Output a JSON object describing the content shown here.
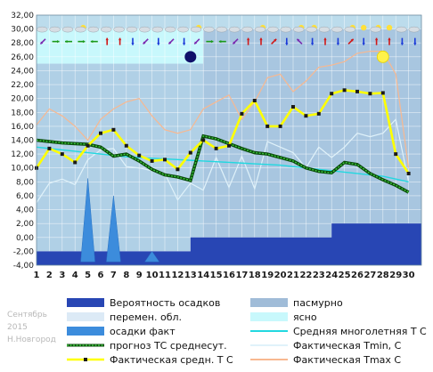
{
  "chart_data": {
    "type": "line",
    "title": "",
    "xlabel": "",
    "ylabel": "",
    "ylim": [
      -4,
      32
    ],
    "yticks": [
      "32,00",
      "30,00",
      "28,00",
      "26,00",
      "24,00",
      "22,00",
      "20,00",
      "18,00",
      "16,00",
      "14,00",
      "12,00",
      "10,00",
      "8,00",
      "6,00",
      "4,00",
      "2,00",
      "0,00",
      "-2,00",
      "-4,00"
    ],
    "x": [
      1,
      2,
      3,
      4,
      5,
      6,
      7,
      8,
      9,
      10,
      11,
      12,
      13,
      14,
      15,
      16,
      17,
      18,
      19,
      20,
      21,
      22,
      23,
      24,
      25,
      26,
      27,
      28,
      29,
      30
    ],
    "grid": true,
    "legend_placement": "bottom",
    "watermark": [
      "Сентябрь",
      "2015",
      "Н.Новгород"
    ],
    "colors": {
      "plot_bg": "#bcdcec",
      "precip_prob": "#2846b4",
      "overcast": "#a0bcd8",
      "variable": "#dceaf6",
      "precip_fact": "#3c8cdc",
      "clear": "#c8f8fc",
      "forecast": "#0a7a0a",
      "climate": "#22d8e0",
      "tmin": "#e0f2fa",
      "tmean": "#ffff00",
      "tmax": "#f8b890"
    },
    "band_top": {
      "clear_cols_1_13": 30,
      "variable_cols_1_13": 25,
      "overcast_cols_14_29": 30
    },
    "series": [
      {
        "name": "Фактическая Tmax, C",
        "key": "tmax",
        "values": [
          16.2,
          18.5,
          17.5,
          16.0,
          14.0,
          17.0,
          18.5,
          19.5,
          20.0,
          17.5,
          15.5,
          15.0,
          15.5,
          18.5,
          19.5,
          20.5,
          17.0,
          19.5,
          23.0,
          23.5,
          21.0,
          22.5,
          24.5,
          24.8,
          25.3,
          26.5,
          26.8,
          26.8,
          23.5,
          10.0
        ]
      },
      {
        "name": "Фактическая Tmin, C",
        "key": "tmin",
        "values": [
          5.0,
          7.8,
          8.4,
          7.6,
          11.2,
          12.6,
          12.8,
          10.2,
          10.0,
          9.6,
          9.2,
          5.4,
          7.8,
          6.8,
          11.5,
          7.2,
          11.7,
          7.0,
          13.8,
          13.0,
          12.2,
          10.0,
          13.0,
          11.5,
          13.0,
          15.0,
          14.5,
          15.0,
          17.0,
          8.0
        ]
      },
      {
        "name": "Средняя многолетняя T С",
        "key": "climate",
        "values": [
          13.0,
          12.8,
          12.6,
          12.4,
          12.2,
          12.0,
          11.8,
          11.6,
          11.5,
          11.4,
          11.3,
          11.2,
          11.1,
          11.0,
          10.9,
          10.8,
          10.7,
          10.6,
          10.5,
          10.4,
          10.2,
          10.0,
          9.8,
          9.6,
          9.4,
          9.2,
          9.0,
          8.8,
          8.4,
          8.0
        ]
      },
      {
        "name": "прогноз ТС среднесут.",
        "key": "forecast",
        "values": [
          14.0,
          13.8,
          13.6,
          13.5,
          13.4,
          13.0,
          11.7,
          12.0,
          11.0,
          9.8,
          9.0,
          8.7,
          8.2,
          14.6,
          14.2,
          13.5,
          12.8,
          12.2,
          12.0,
          11.5,
          11.0,
          10.0,
          9.5,
          9.3,
          10.8,
          10.5,
          9.2,
          8.3,
          7.5,
          6.5
        ]
      },
      {
        "name": "Фактическая средн. Т С",
        "key": "tmean",
        "values": [
          10.0,
          12.8,
          12.0,
          10.8,
          13.2,
          15.0,
          15.5,
          13.2,
          11.8,
          11.0,
          11.2,
          9.8,
          12.2,
          14.0,
          12.8,
          13.2,
          17.8,
          19.7,
          16.0,
          16.0,
          18.8,
          17.5,
          17.8,
          20.7,
          21.2,
          21.0,
          20.7,
          20.8,
          12.0,
          9.2
        ]
      }
    ],
    "precip_prob": [
      -2,
      -2,
      -2,
      -2,
      -2,
      -2,
      -2,
      -2,
      -2,
      -2,
      -2,
      -2,
      0,
      0,
      0,
      0,
      0,
      0,
      0,
      0,
      0,
      0,
      0,
      2,
      2,
      2,
      2,
      2,
      2,
      2,
      2
    ],
    "precip_fact_peaks": [
      {
        "day": 5,
        "value": 8.5
      },
      {
        "day": 7,
        "value": 6.0
      },
      {
        "day": 10,
        "value": -2.0
      }
    ],
    "moon_markers": [
      {
        "day": 13,
        "value": 26.0
      }
    ],
    "sun_markers": [
      {
        "day": 28,
        "value": 26.0
      }
    ],
    "weather_icons": [
      "cloud",
      "cloud",
      "cloud",
      "sun-cloud",
      "cloud",
      "cloud",
      "cloud",
      "cloud",
      "cloud",
      "cloud",
      "cloud",
      "cloud",
      "sun-cloud",
      "cloud",
      "cloud",
      "cloud",
      "cloud",
      "sun-cloud",
      "cloud",
      "cloud",
      "sun-cloud",
      "sun-cloud",
      "cloud",
      "cloud",
      "sun-cloud",
      "sun",
      "sun-cloud",
      "sun",
      "cloud",
      "cloud"
    ],
    "wind_icons": [
      "sw",
      "e",
      "w",
      "e",
      "w",
      "n",
      "n",
      "s",
      "sw",
      "s",
      "sw",
      "s",
      "sw",
      "e",
      "w",
      "sw",
      "n",
      "n",
      "ne",
      "s",
      "nw",
      "s",
      "n",
      "s",
      "ne",
      "s",
      "n",
      "n",
      "s",
      "s"
    ]
  },
  "legend": [
    {
      "key": "precip_prob",
      "label": "Вероятность осадков"
    },
    {
      "key": "overcast",
      "label": "пасмурно"
    },
    {
      "key": "variable",
      "label": "перемен. обл."
    },
    {
      "key": "clear",
      "label": "ясно"
    },
    {
      "key": "precip_fact",
      "label": "осадки факт"
    },
    {
      "key": "climate",
      "label": "Средняя многолетняя Т С"
    },
    {
      "key": "forecast",
      "label": "прогноз ТС среднесут."
    },
    {
      "key": "tmin",
      "label": "Фактическая Tmin, C"
    },
    {
      "key": "tmean",
      "label": "Фактическая средн. Т С"
    },
    {
      "key": "tmax",
      "label": "Фактическая Tmax C"
    }
  ]
}
